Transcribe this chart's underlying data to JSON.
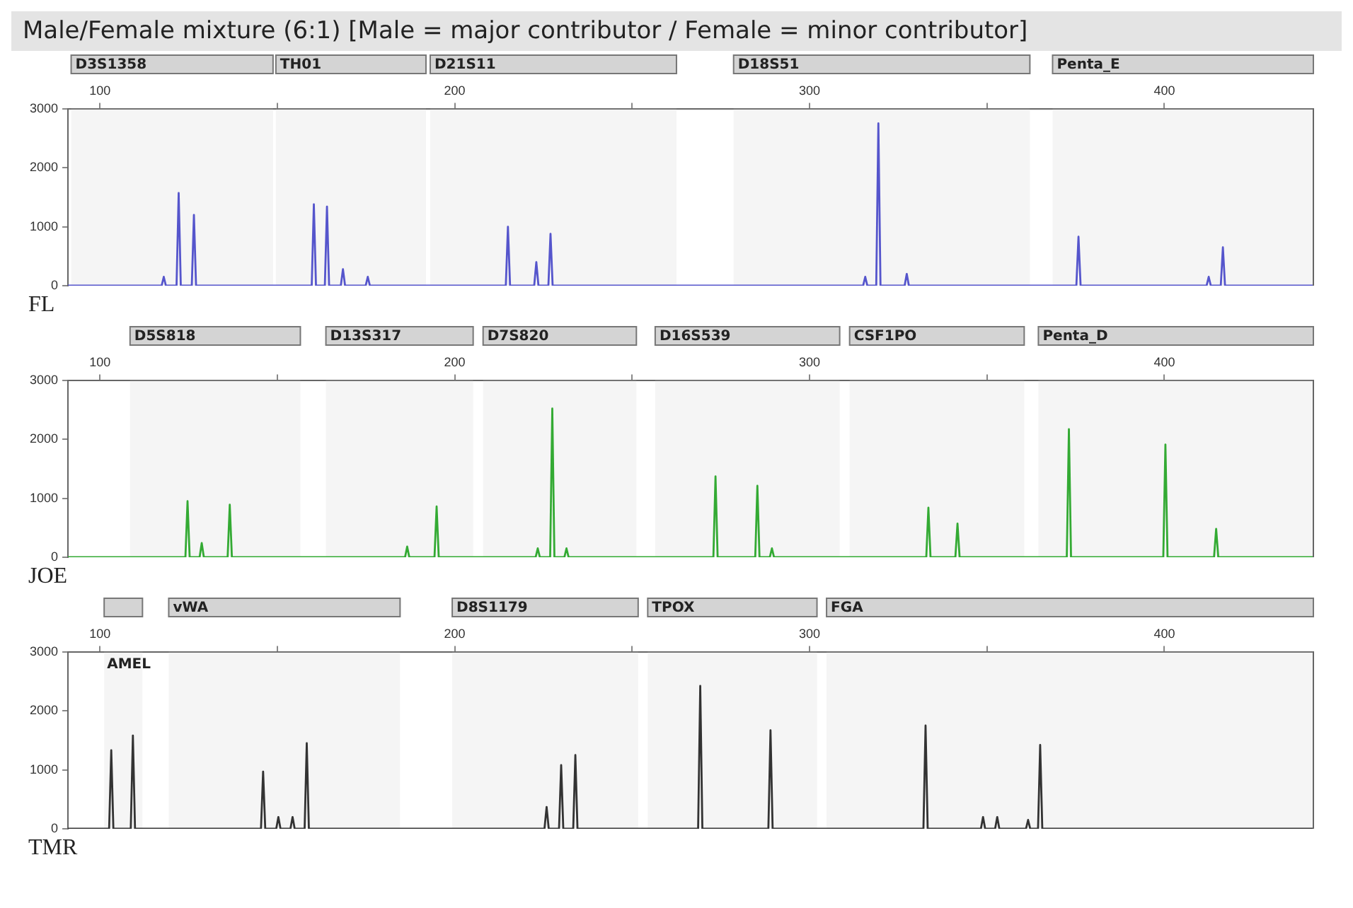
{
  "chart_data": [
    {
      "type": "line",
      "title": "Male/Female mixture (6:1) [Male = major contributor / Female = minor contributor]",
      "color": "#5555cc",
      "grid": false,
      "xlim": [
        91,
        442
      ],
      "xticks": [
        100,
        {
          "value": 150,
          "label": null
        },
        200,
        {
          "value": 250,
          "label": null
        },
        300,
        {
          "value": 350,
          "label": null
        },
        400
      ],
      "ylim": [
        0,
        3000
      ],
      "yticks": [
        0,
        1000,
        2000,
        3000
      ],
      "bands": [
        {
          "axis": "x",
          "from": 91.9,
          "to": 148.8,
          "label": "D3S1358"
        },
        {
          "axis": "x",
          "from": 149.6,
          "to": 191.9,
          "label": "TH01"
        },
        {
          "axis": "x",
          "from": 193.1,
          "to": 262.5,
          "label": "D21S11"
        },
        {
          "axis": "x",
          "from": 278.6,
          "to": 362.1,
          "label": "D18S51"
        },
        {
          "axis": "x",
          "from": 368.5,
          "to": 442,
          "label": "Penta_E"
        }
      ],
      "annotations": [
        "FL"
      ],
      "x": [
        91,
        117.4,
        118,
        118.6,
        121.6,
        122.2,
        122.8,
        125.9,
        126.5,
        127.1,
        159.7,
        160.3,
        160.9,
        163.4,
        164,
        164.6,
        167.9,
        168.5,
        169.1,
        174.9,
        175.5,
        176.1,
        214.4,
        215,
        215.6,
        222.4,
        223,
        223.6,
        226.4,
        227,
        227.6,
        315.1,
        315.7,
        316.3,
        318.8,
        319.4,
        320,
        326.8,
        327.4,
        328,
        375.2,
        375.8,
        376.4,
        411.9,
        412.5,
        413.1,
        415.9,
        416.5,
        417.1,
        442
      ],
      "values": [
        0,
        0,
        150,
        0,
        0,
        1570,
        0,
        0,
        1200,
        0,
        0,
        1380,
        0,
        0,
        1340,
        0,
        0,
        280,
        0,
        0,
        150,
        0,
        0,
        1000,
        0,
        0,
        400,
        0,
        0,
        880,
        0,
        0,
        150,
        0,
        0,
        2750,
        0,
        0,
        200,
        0,
        0,
        830,
        0,
        0,
        150,
        0,
        0,
        650,
        0,
        0
      ]
    },
    {
      "type": "line",
      "color": "#33aa33",
      "grid": false,
      "xlim": [
        91,
        442
      ],
      "xticks": [
        100,
        {
          "value": 150,
          "label": null
        },
        200,
        {
          "value": 250,
          "label": null
        },
        300,
        {
          "value": 350,
          "label": null
        },
        400
      ],
      "ylim": [
        0,
        3000
      ],
      "yticks": [
        0,
        1000,
        2000,
        3000
      ],
      "bands": [
        {
          "axis": "x",
          "from": 108.5,
          "to": 156.5,
          "label": "D5S818"
        },
        {
          "axis": "x",
          "from": 163.7,
          "to": 205.2,
          "label": "D13S317"
        },
        {
          "axis": "x",
          "from": 208,
          "to": 251.2,
          "label": "D7S820"
        },
        {
          "axis": "x",
          "from": 256.5,
          "to": 308.5,
          "label": "D16S539"
        },
        {
          "axis": "x",
          "from": 311.3,
          "to": 360.5,
          "label": "CSF1PO"
        },
        {
          "axis": "x",
          "from": 364.5,
          "to": 442,
          "label": "Penta_D"
        }
      ],
      "annotations": [
        "JOE"
      ],
      "x": [
        91,
        124.1,
        124.7,
        125.3,
        128.1,
        128.7,
        129.3,
        136,
        136.6,
        137.2,
        186,
        186.6,
        187.2,
        194.3,
        194.9,
        195.5,
        222.8,
        223.4,
        224,
        226.9,
        227.5,
        228.1,
        230.9,
        231.5,
        232.1,
        272.9,
        273.5,
        274.1,
        284.7,
        285.3,
        285.9,
        288.8,
        289.4,
        290,
        332.9,
        333.5,
        334.1,
        341.1,
        341.7,
        342.3,
        372.5,
        373.1,
        373.7,
        399.7,
        400.3,
        400.9,
        414,
        414.6,
        415.2,
        442
      ],
      "values": [
        0,
        0,
        950,
        0,
        0,
        240,
        0,
        0,
        890,
        0,
        0,
        180,
        0,
        0,
        860,
        0,
        0,
        150,
        0,
        0,
        2520,
        0,
        0,
        150,
        0,
        0,
        1370,
        0,
        0,
        1210,
        0,
        0,
        150,
        0,
        0,
        840,
        0,
        0,
        570,
        0,
        0,
        2170,
        0,
        0,
        1910,
        0,
        0,
        480,
        0,
        0
      ]
    },
    {
      "type": "line",
      "color": "#333333",
      "grid": false,
      "xlim": [
        91,
        442
      ],
      "xticks": [
        100,
        {
          "value": 150,
          "label": null
        },
        200,
        {
          "value": 250,
          "label": null
        },
        300,
        {
          "value": 350,
          "label": null
        },
        400
      ],
      "ylim": [
        0,
        3000
      ],
      "yticks": [
        0,
        1000,
        2000,
        3000
      ],
      "bands": [
        {
          "axis": "x",
          "from": 101.2,
          "to": 112,
          "label": "AMEL"
        },
        {
          "axis": "x",
          "from": 119.4,
          "to": 184.6,
          "label": "vWA"
        },
        {
          "axis": "x",
          "from": 199.3,
          "to": 251.7,
          "label": "D8S1179"
        },
        {
          "axis": "x",
          "from": 254.4,
          "to": 302.1,
          "label": "TPOX"
        },
        {
          "axis": "x",
          "from": 304.8,
          "to": 442,
          "label": "FGA"
        }
      ],
      "annotations": [
        "TMR"
      ],
      "x": [
        91,
        102.6,
        103.2,
        103.8,
        108.7,
        109.3,
        109.9,
        145.4,
        146,
        146.6,
        149.7,
        150.3,
        150.9,
        153.7,
        154.3,
        154.9,
        157.7,
        158.3,
        158.9,
        225.3,
        225.9,
        226.5,
        229.4,
        230,
        230.6,
        233.4,
        234,
        234.6,
        268.6,
        269.2,
        269.8,
        288.4,
        289,
        289.6,
        332.1,
        332.7,
        333.3,
        348.3,
        348.9,
        349.5,
        352.3,
        352.9,
        353.5,
        361,
        361.6,
        362.2,
        364.4,
        365,
        365.6,
        442
      ],
      "values": [
        0,
        0,
        1330,
        0,
        0,
        1580,
        0,
        0,
        970,
        0,
        0,
        200,
        0,
        0,
        200,
        0,
        0,
        1450,
        0,
        0,
        370,
        0,
        0,
        1080,
        0,
        0,
        1250,
        0,
        0,
        2420,
        0,
        0,
        1670,
        0,
        0,
        1750,
        0,
        0,
        200,
        0,
        0,
        200,
        0,
        0,
        150,
        0,
        0,
        1420,
        0,
        0
      ]
    }
  ]
}
